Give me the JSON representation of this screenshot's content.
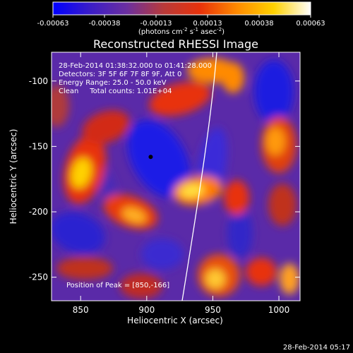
{
  "colorbar": {
    "ticks": [
      "-0.00063",
      "-0.00038",
      "-0.00013",
      "0.00013",
      "0.00038",
      "0.00063"
    ],
    "unit_label_pre": "(photons cm",
    "unit_sup1": "-2",
    "unit_mid1": " s",
    "unit_sup2": "-1",
    "unit_mid2": " asec",
    "unit_sup3": "-2",
    "unit_post": ")"
  },
  "chart_data": {
    "type": "heatmap",
    "title": "Reconstructed RHESSI Image",
    "xlabel": "Heliocentric X (arcsec)",
    "ylabel": "Heliocentric Y (arcsec)",
    "xlim": [
      828,
      1016
    ],
    "ylim": [
      -268,
      -78
    ],
    "x_ticks": [
      850,
      900,
      950,
      1000
    ],
    "y_ticks": [
      -250,
      -200,
      -150,
      -100
    ],
    "color_range": [
      -0.00063,
      0.00063
    ],
    "colormap": [
      "#0000ff",
      "#3a1cc8",
      "#6b2fa0",
      "#b83a3a",
      "#e8320a",
      "#ff8a00",
      "#ffd200",
      "#ffffff"
    ],
    "peak": {
      "x": 850,
      "y": -166
    },
    "marker": {
      "x": 903,
      "y": -158
    },
    "annotations": [
      "28-Feb-2014 01:38:32.000 to 01:41:28.000",
      "Detectors: 3F 5F 6F 7F 8F 9F, Att 0",
      "Energy Range: 25.0 - 50.0 keV",
      "Clean     Total counts: 1.01E+04"
    ],
    "peak_label": "Position of Peak = [850,-166]"
  },
  "footer_timestamp": "28-Feb-2014 05:17"
}
